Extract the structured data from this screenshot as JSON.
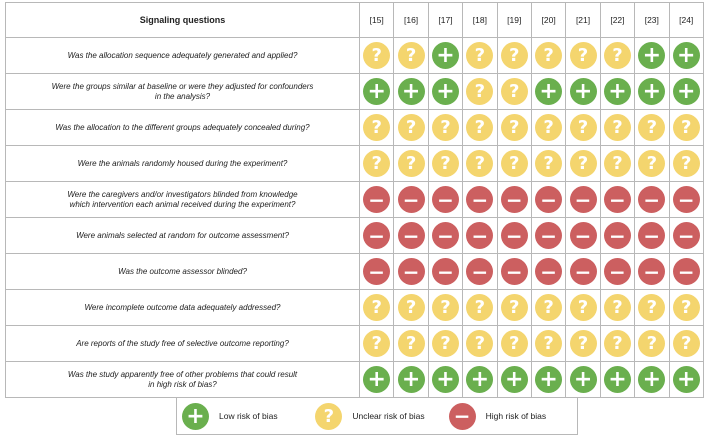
{
  "header": {
    "questions_label": "Signaling questions",
    "studies": [
      "[15]",
      "[16]",
      "[17]",
      "[18]",
      "[19]",
      "[20]",
      "[21]",
      "[22]",
      "[23]",
      "[24]"
    ]
  },
  "rows": [
    {
      "question_lines": [
        "Was the allocation sequence adequately generated and applied?"
      ],
      "ratings": [
        "unclear",
        "unclear",
        "low",
        "unclear",
        "unclear",
        "unclear",
        "unclear",
        "unclear",
        "low",
        "low"
      ]
    },
    {
      "question_lines": [
        "Were the groups similar at baseline or were they adjusted for confounders",
        "in the analysis?"
      ],
      "ratings": [
        "low",
        "low",
        "low",
        "unclear",
        "unclear",
        "low",
        "low",
        "low",
        "low",
        "low"
      ]
    },
    {
      "question_lines": [
        "Was the allocation to the different groups adequately concealed during?"
      ],
      "ratings": [
        "unclear",
        "unclear",
        "unclear",
        "unclear",
        "unclear",
        "unclear",
        "unclear",
        "unclear",
        "unclear",
        "unclear"
      ]
    },
    {
      "question_lines": [
        "Were the animals randomly housed during the experiment?"
      ],
      "ratings": [
        "unclear",
        "unclear",
        "unclear",
        "unclear",
        "unclear",
        "unclear",
        "unclear",
        "unclear",
        "unclear",
        "unclear"
      ]
    },
    {
      "question_lines": [
        "Were the caregivers and/or investigators blinded from knowledge",
        "which intervention each animal received during the experiment?"
      ],
      "ratings": [
        "high",
        "high",
        "high",
        "high",
        "high",
        "high",
        "high",
        "high",
        "high",
        "high"
      ]
    },
    {
      "question_lines": [
        "Were animals selected at random for outcome assessment?"
      ],
      "ratings": [
        "high",
        "high",
        "high",
        "high",
        "high",
        "high",
        "high",
        "high",
        "high",
        "high"
      ]
    },
    {
      "question_lines": [
        "Was the outcome assessor blinded?"
      ],
      "ratings": [
        "high",
        "high",
        "high",
        "high",
        "high",
        "high",
        "high",
        "high",
        "high",
        "high"
      ]
    },
    {
      "question_lines": [
        "Were incomplete outcome data adequately addressed?"
      ],
      "ratings": [
        "unclear",
        "unclear",
        "unclear",
        "unclear",
        "unclear",
        "unclear",
        "unclear",
        "unclear",
        "unclear",
        "unclear"
      ]
    },
    {
      "question_lines": [
        "Are reports of the study free of selective outcome reporting?"
      ],
      "ratings": [
        "unclear",
        "unclear",
        "unclear",
        "unclear",
        "unclear",
        "unclear",
        "unclear",
        "unclear",
        "unclear",
        "unclear"
      ]
    },
    {
      "question_lines": [
        "Was the study apparently free of other problems that could result",
        "in high risk of bias?"
      ],
      "ratings": [
        "low",
        "low",
        "low",
        "low",
        "low",
        "low",
        "low",
        "low",
        "low",
        "low"
      ]
    }
  ],
  "legend": {
    "low": "Low risk of bias",
    "unclear": "Unclear risk of bias",
    "high": "High risk of bias"
  },
  "colors": {
    "low": "#6aaf4e",
    "unclear": "#f4d56e",
    "high": "#cc5f60"
  },
  "icons": {
    "low": "plus-icon",
    "unclear": "question-icon",
    "high": "minus-icon"
  }
}
